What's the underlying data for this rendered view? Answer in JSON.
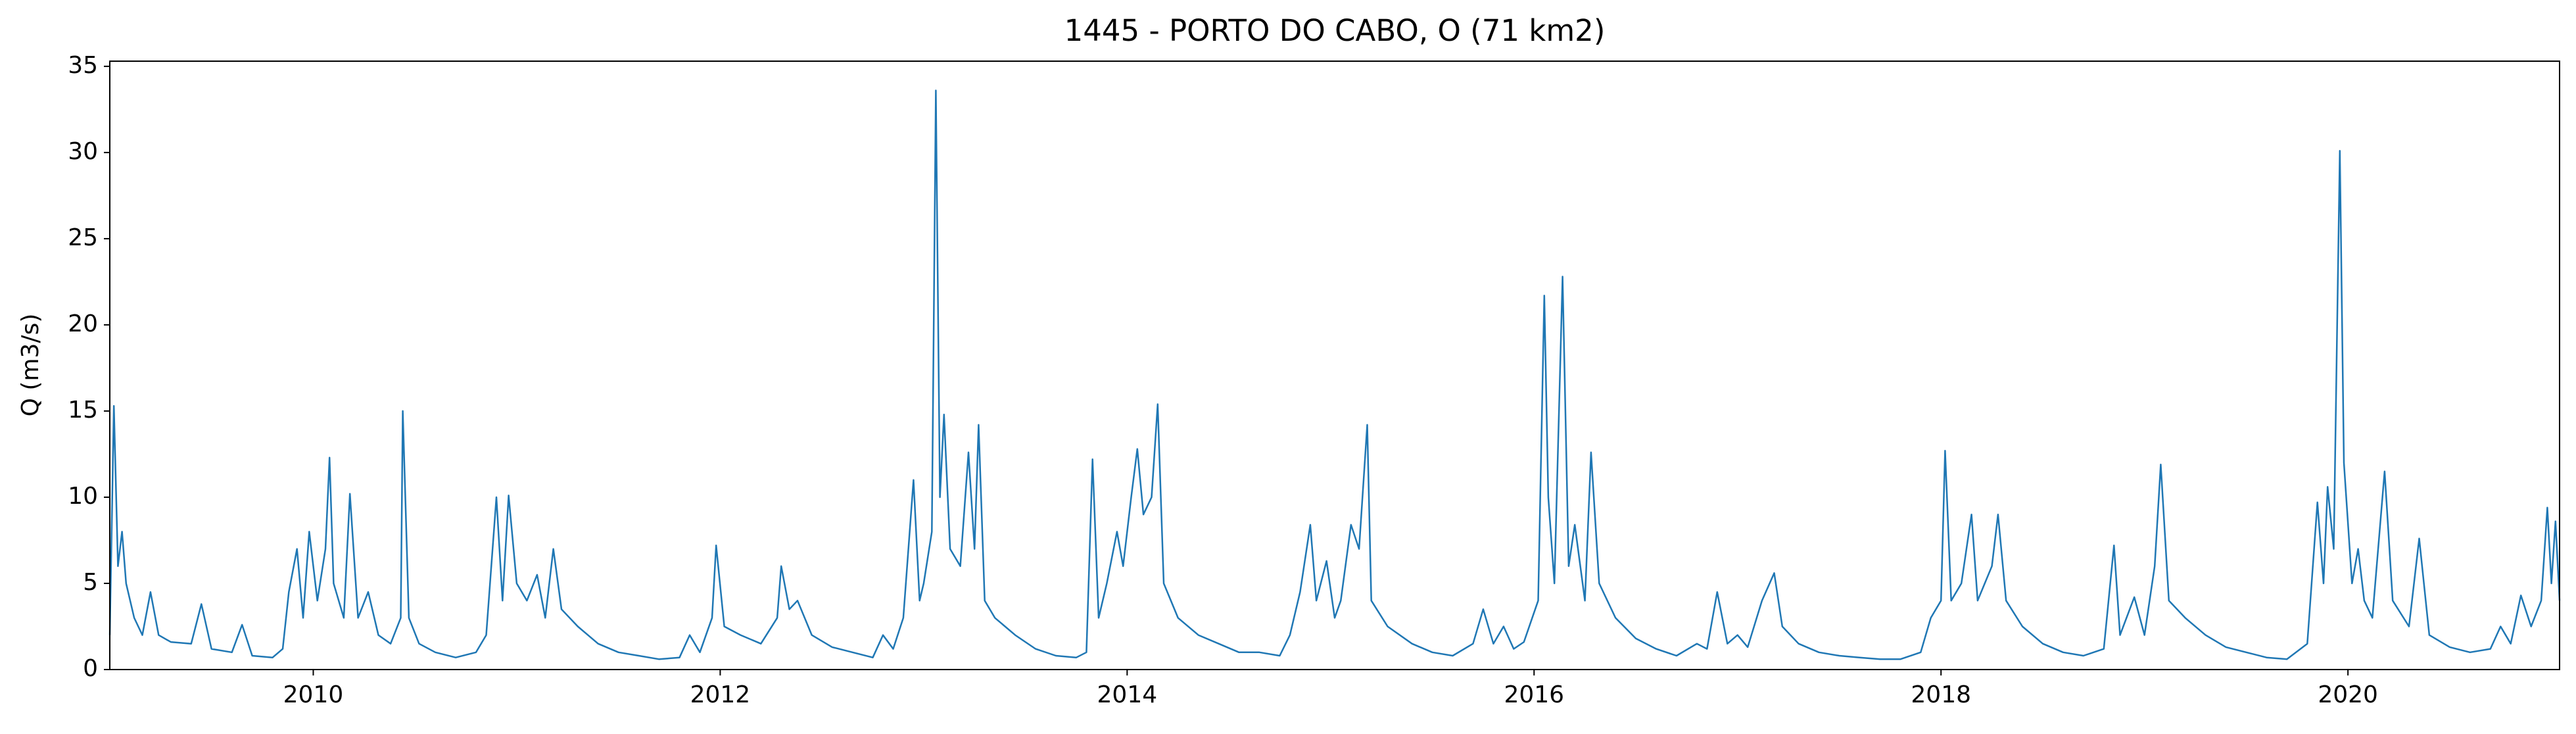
{
  "chart_data": {
    "type": "line",
    "title": "1445 - PORTO DO CABO, O (71 km2)",
    "y_label": "Q (m3/s)",
    "xlim": [
      2009.0,
      2021.04
    ],
    "xticks": [
      2010,
      2012,
      2014,
      2016,
      2018,
      2020
    ],
    "ylim": [
      0,
      35.3
    ],
    "yticks": [
      0,
      5,
      10,
      15,
      20,
      25,
      30,
      35
    ],
    "series": [
      {
        "name": "Q",
        "color": "#1f77b4",
        "x": [
          2009.0,
          2009.02,
          2009.04,
          2009.06,
          2009.08,
          2009.12,
          2009.16,
          2009.2,
          2009.24,
          2009.3,
          2009.4,
          2009.45,
          2009.5,
          2009.6,
          2009.65,
          2009.7,
          2009.8,
          2009.85,
          2009.88,
          2009.92,
          2009.95,
          2009.98,
          2010.02,
          2010.06,
          2010.08,
          2010.1,
          2010.15,
          2010.18,
          2010.22,
          2010.27,
          2010.32,
          2010.38,
          2010.43,
          2010.44,
          2010.47,
          2010.52,
          2010.6,
          2010.7,
          2010.8,
          2010.85,
          2010.9,
          2010.93,
          2010.96,
          2011.0,
          2011.05,
          2011.1,
          2011.14,
          2011.18,
          2011.22,
          2011.3,
          2011.4,
          2011.5,
          2011.6,
          2011.7,
          2011.8,
          2011.85,
          2011.9,
          2011.96,
          2011.98,
          2012.02,
          2012.1,
          2012.2,
          2012.28,
          2012.3,
          2012.34,
          2012.38,
          2012.45,
          2012.55,
          2012.65,
          2012.75,
          2012.8,
          2012.85,
          2012.9,
          2012.95,
          2012.98,
          2013.0,
          2013.04,
          2013.06,
          2013.08,
          2013.1,
          2013.13,
          2013.18,
          2013.22,
          2013.25,
          2013.27,
          2013.3,
          2013.35,
          2013.45,
          2013.55,
          2013.65,
          2013.75,
          2013.8,
          2013.83,
          2013.86,
          2013.9,
          2013.95,
          2013.98,
          2014.02,
          2014.05,
          2014.08,
          2014.12,
          2014.15,
          2014.18,
          2014.25,
          2014.35,
          2014.45,
          2014.55,
          2014.65,
          2014.75,
          2014.8,
          2014.85,
          2014.9,
          2014.93,
          2014.98,
          2015.02,
          2015.05,
          2015.1,
          2015.14,
          2015.18,
          2015.2,
          2015.28,
          2015.4,
          2015.5,
          2015.6,
          2015.7,
          2015.75,
          2015.8,
          2015.85,
          2015.9,
          2015.95,
          2016.02,
          2016.05,
          2016.07,
          2016.1,
          2016.14,
          2016.17,
          2016.2,
          2016.25,
          2016.28,
          2016.32,
          2016.4,
          2016.5,
          2016.6,
          2016.7,
          2016.8,
          2016.85,
          2016.9,
          2016.95,
          2017.0,
          2017.05,
          2017.12,
          2017.18,
          2017.22,
          2017.3,
          2017.4,
          2017.5,
          2017.6,
          2017.7,
          2017.8,
          2017.9,
          2017.95,
          2018.0,
          2018.02,
          2018.05,
          2018.1,
          2018.15,
          2018.18,
          2018.25,
          2018.28,
          2018.32,
          2018.4,
          2018.5,
          2018.6,
          2018.7,
          2018.8,
          2018.85,
          2018.88,
          2018.95,
          2019.0,
          2019.05,
          2019.08,
          2019.12,
          2019.2,
          2019.3,
          2019.4,
          2019.5,
          2019.6,
          2019.7,
          2019.8,
          2019.85,
          2019.88,
          2019.9,
          2019.93,
          2019.96,
          2019.98,
          2020.02,
          2020.05,
          2020.08,
          2020.12,
          2020.18,
          2020.22,
          2020.3,
          2020.35,
          2020.4,
          2020.5,
          2020.6,
          2020.7,
          2020.75,
          2020.8,
          2020.85,
          2020.9,
          2020.95,
          2020.98,
          2021.0,
          2021.02,
          2021.04
        ],
        "values": [
          2,
          15.3,
          6,
          8,
          5,
          3,
          2,
          4.5,
          2,
          1.6,
          1.5,
          3.8,
          1.2,
          1,
          2.6,
          0.8,
          0.7,
          1.2,
          4.5,
          7,
          3,
          8,
          4,
          7,
          12.3,
          5,
          3,
          10.2,
          3,
          4.5,
          2,
          1.5,
          3,
          15,
          3,
          1.5,
          1,
          0.7,
          1,
          2,
          10,
          4,
          10.1,
          5,
          4,
          5.5,
          3,
          7,
          3.5,
          2.5,
          1.5,
          1,
          0.8,
          0.6,
          0.7,
          2,
          1,
          3,
          7.2,
          2.5,
          2,
          1.5,
          3,
          6,
          3.5,
          4,
          2,
          1.3,
          1,
          0.7,
          2,
          1.2,
          3,
          11,
          4,
          5,
          8,
          33.6,
          10,
          14.8,
          7,
          6,
          12.6,
          7,
          14.2,
          4,
          3,
          2,
          1.2,
          0.8,
          0.7,
          1,
          12.2,
          3,
          5,
          8,
          6,
          10,
          12.8,
          9,
          10,
          15.4,
          5,
          3,
          2,
          1.5,
          1,
          1,
          0.8,
          2,
          4.5,
          8.4,
          4,
          6.3,
          3,
          4,
          8.4,
          7,
          14.2,
          4,
          2.5,
          1.5,
          1,
          0.8,
          1.5,
          3.5,
          1.5,
          2.5,
          1.2,
          1.6,
          4,
          21.7,
          10,
          5,
          22.8,
          6,
          8.4,
          4,
          12.6,
          5,
          3,
          1.8,
          1.2,
          0.8,
          1.5,
          1.2,
          4.5,
          1.5,
          2,
          1.3,
          4,
          5.6,
          2.5,
          1.5,
          1,
          0.8,
          0.7,
          0.6,
          0.6,
          1,
          3,
          4,
          12.7,
          4,
          5,
          9,
          4,
          6,
          9,
          4,
          2.5,
          1.5,
          1,
          0.8,
          1.2,
          7.2,
          2,
          4.2,
          2,
          6,
          11.9,
          4,
          3,
          2,
          1.3,
          1,
          0.7,
          0.6,
          1.5,
          9.7,
          5,
          10.6,
          7,
          30.1,
          12,
          5,
          7,
          4,
          3,
          11.5,
          4,
          2.5,
          7.6,
          2,
          1.3,
          1,
          1.2,
          2.5,
          1.5,
          4.3,
          2.5,
          4,
          9.4,
          5,
          8.6,
          4
        ]
      }
    ]
  }
}
